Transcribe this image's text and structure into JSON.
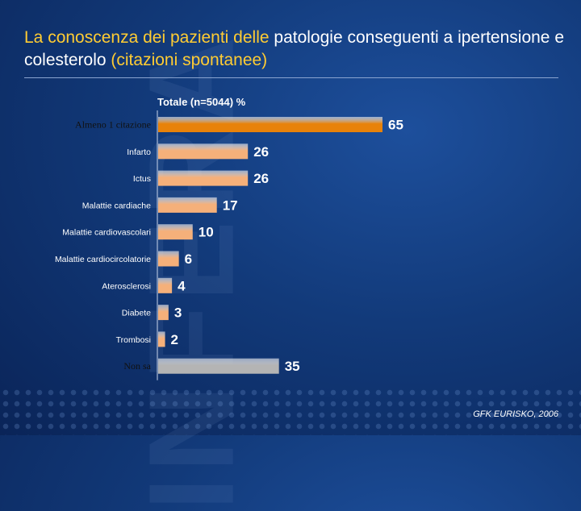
{
  "slide": {
    "title_parts": [
      {
        "text": "La conoscenza dei pazienti delle ",
        "color": "#ffcc33"
      },
      {
        "text": "patologie conseguenti a ipertensione e colesterolo ",
        "color": "#ffffff"
      },
      {
        "text": "(citazioni spontanee)",
        "color": "#ffcc33"
      }
    ],
    "watermark": "INFERA",
    "source": "GFK EURISKO, 2006"
  },
  "chart_data": {
    "type": "bar",
    "orientation": "horizontal",
    "title": "Totale (n=5044) %",
    "categories": [
      "Almeno 1 citazione",
      "Infarto",
      "Ictus",
      "Malattie cardiache",
      "Malattie cardiovascolari",
      "Malattie cardiocircolatorie",
      "Aterosclerosi",
      "Diabete",
      "Trombosi",
      "Non sa"
    ],
    "values": [
      65,
      26,
      26,
      17,
      10,
      6,
      4,
      3,
      2,
      35
    ],
    "colors": [
      "#e8820a",
      "#f5b07a",
      "#f5b07a",
      "#f5b07a",
      "#f5b07a",
      "#f5b07a",
      "#f5b07a",
      "#f5b07a",
      "#f5b07a",
      "#b4b4b4"
    ],
    "label_styles": [
      "serif-dark",
      "sans",
      "sans",
      "sans",
      "sans",
      "sans",
      "sans",
      "sans",
      "sans",
      "serif-dark"
    ],
    "xlim": [
      0,
      100
    ],
    "grid": false,
    "legend": "none"
  }
}
